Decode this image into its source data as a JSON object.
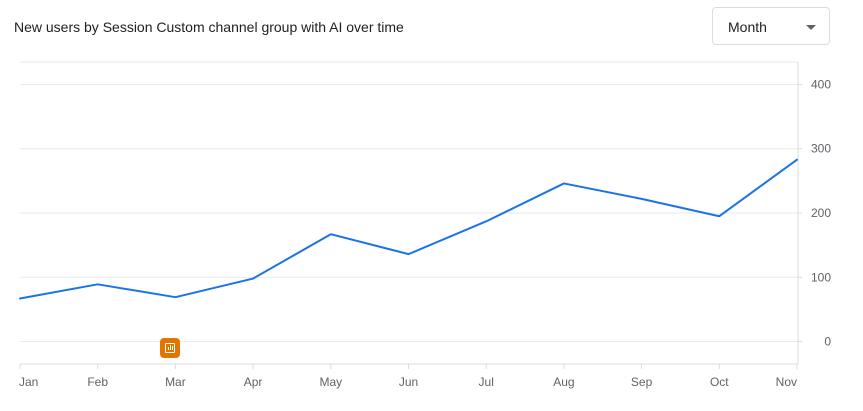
{
  "header": {
    "title": "New users by Session Custom channel group with AI over time"
  },
  "period_select": {
    "value": "Month",
    "icon": "chevron-down-icon"
  },
  "annotation": {
    "icon": "annotation-chart-icon",
    "color": "#e37400"
  },
  "chart_data": {
    "type": "line",
    "title": "New users by Session Custom channel group with AI over time",
    "categories": [
      "Jan",
      "Feb",
      "Mar",
      "Apr",
      "May",
      "Jun",
      "Jul",
      "Aug",
      "Sep",
      "Oct",
      "Nov"
    ],
    "series": [
      {
        "values": [
          67,
          89,
          69,
          98,
          167,
          136,
          187,
          246,
          222,
          195,
          283
        ],
        "color": "#1a73e8"
      }
    ],
    "yticks": [
      0,
      100,
      200,
      300,
      400
    ],
    "ylim": [
      -35,
      435
    ],
    "y_axis_position": "right",
    "grid": true,
    "legend": "none"
  }
}
